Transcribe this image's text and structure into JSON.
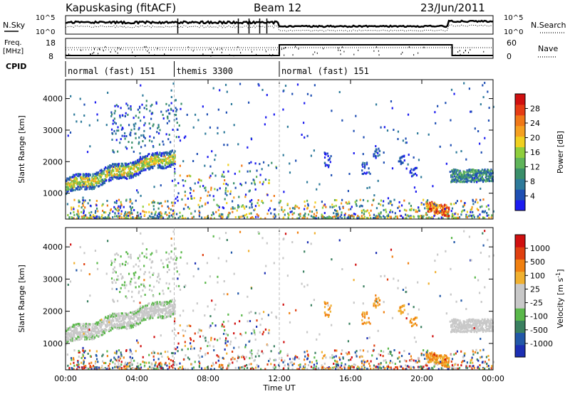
{
  "header": {
    "station": "Kapuskasing (fitACF)",
    "beam": "Beam 12",
    "date": "23/Jun/2011"
  },
  "strips": {
    "nsky_label": "N.Sky",
    "nsearch_label": "N.Search",
    "freq_label_1": "Freq.",
    "freq_label_2": "[MHz]",
    "nave_label": "Nave",
    "cpid_label": "CPID",
    "noise_ticks": [
      "10^5",
      "10^0"
    ],
    "freq_ticks": [
      "18",
      "8"
    ],
    "nave_ticks": [
      "60",
      "0"
    ]
  },
  "cpid_segments": [
    {
      "label": "normal (fast) 151",
      "start_hour": 0,
      "end_hour": 6.1
    },
    {
      "label": "themis 3300",
      "start_hour": 6.1,
      "end_hour": 12.0
    },
    {
      "label": "normal (fast) 151",
      "start_hour": 12.0,
      "end_hour": 24.0
    }
  ],
  "colors": {
    "power_scale": [
      "#1c1cf0",
      "#1f4fb3",
      "#2e7a9a",
      "#3a8f6a",
      "#5fb45a",
      "#8fce3c",
      "#f0d020",
      "#f5a020",
      "#f07818",
      "#e63c14",
      "#d01010"
    ],
    "velocity_scale": [
      "#1c2fb3",
      "#2258a8",
      "#3a8060",
      "#5ab84a",
      "#c8c8c8",
      "#c8c8c8",
      "#f0b030",
      "#f08010",
      "#e04010",
      "#d01010"
    ]
  },
  "chart_data": [
    {
      "type": "heatmap",
      "panel": "power",
      "ylabel": "Slant Range [km]",
      "ylim": [
        180,
        4600
      ],
      "xlim": [
        0,
        24
      ],
      "yticks": [
        "4000",
        "3000",
        "2000",
        "1000"
      ],
      "colorbar_label": "Power [dB]",
      "colorbar_ticks": [
        "28",
        "24",
        "20",
        "16",
        "12",
        "8",
        "4"
      ],
      "colorbar_range": [
        0,
        30
      ]
    },
    {
      "type": "heatmap",
      "panel": "velocity",
      "xlabel": "Time UT",
      "ylabel": "Slant Range [km]",
      "ylim": [
        180,
        4600
      ],
      "xlim": [
        0,
        24
      ],
      "yticks": [
        "4000",
        "3000",
        "2000",
        "1000"
      ],
      "xticks": [
        "00:00",
        "04:00",
        "08:00",
        "12:00",
        "16:00",
        "20:00",
        "00:00"
      ],
      "colorbar_label": "Velocity [m s",
      "colorbar_label_sup": "-1",
      "colorbar_label_end": "]",
      "colorbar_ticks": [
        "1000",
        "500",
        "100",
        "25",
        "-25",
        "-100",
        "-500",
        "-1000"
      ]
    }
  ]
}
